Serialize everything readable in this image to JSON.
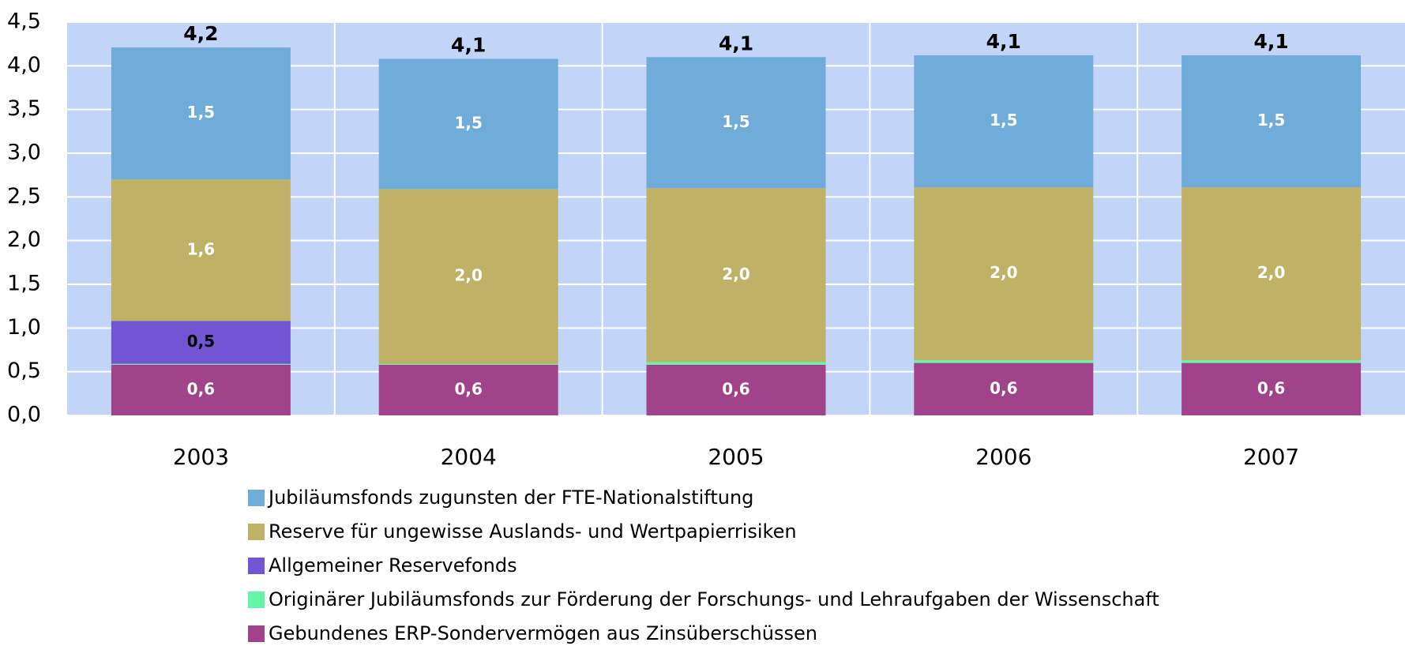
{
  "chart_data": {
    "type": "stacked_bar",
    "categories": [
      "2003",
      "2004",
      "2005",
      "2006",
      "2007"
    ],
    "series": [
      {
        "name": "Jubiläumsfonds zugunsten der FTE-Nationalstiftung",
        "color": "#70acd9",
        "label_color": "#ffffff",
        "values": [
          1.51,
          1.49,
          1.5,
          1.51,
          1.51
        ],
        "value_labels": [
          "1,5",
          "1,5",
          "1,5",
          "1,5",
          "1,5"
        ]
      },
      {
        "name": "Reserve für ungewisse Auslands- und Wertpapierrisiken",
        "color": "#bfb266",
        "label_color": "#ffffff",
        "values": [
          1.62,
          2.0,
          1.99,
          1.98,
          1.98
        ],
        "value_labels": [
          "1,6",
          "2,0",
          "2,0",
          "2,0",
          "2,0"
        ]
      },
      {
        "name": "Allgemeiner Reservefonds",
        "color": "#7155d3",
        "label_color": "#000000",
        "values": [
          0.49,
          0,
          0,
          0,
          0
        ],
        "value_labels": [
          "0,5",
          null,
          null,
          null,
          null
        ]
      },
      {
        "name": "Originärer Jubiläumsfonds zur Förderung der Forschungs- und Lehraufgaben der Wissenschaft",
        "color": "#66f5a8",
        "values": [
          0.01,
          0.01,
          0.03,
          0.03,
          0.03
        ]
      },
      {
        "name": "Gebundenes ERP-Sondervermögen aus Zinsüberschüssen",
        "color": "#a0438a",
        "label_color": "#ffffff",
        "values": [
          0.58,
          0.58,
          0.58,
          0.6,
          0.6
        ],
        "value_labels": [
          "0,6",
          "0,6",
          "0,6",
          "0,6",
          "0,6"
        ]
      }
    ],
    "totals": [
      4.21,
      4.08,
      4.1,
      4.12,
      4.12
    ],
    "total_labels": [
      "4,2",
      "4,1",
      "4,1",
      "4,1",
      "4,1"
    ],
    "ylim": [
      0,
      4.5
    ],
    "yticks": [
      {
        "value": 0,
        "label": "0,0"
      },
      {
        "value": 0.5,
        "label": "0,5"
      },
      {
        "value": 1,
        "label": "1,0"
      },
      {
        "value": 1.5,
        "label": "1,5"
      },
      {
        "value": 2,
        "label": "2,0"
      },
      {
        "value": 2.5,
        "label": "2,5"
      },
      {
        "value": 3,
        "label": "3,0"
      },
      {
        "value": 3.5,
        "label": "3,5"
      },
      {
        "value": 4,
        "label": "4,0"
      },
      {
        "value": 4.5,
        "label": "4,5"
      }
    ],
    "grid": true,
    "plot_background": "#c3d4f9"
  }
}
